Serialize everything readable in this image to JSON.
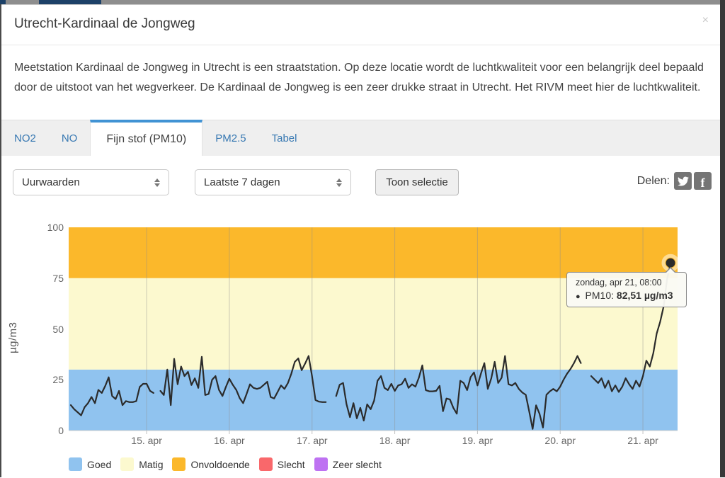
{
  "modal": {
    "title": "Utrecht-Kardinaal de Jongweg",
    "close_glyph": "×",
    "description": "Meetstation Kardinaal de Jongweg in Utrecht is een straatstation. Op deze locatie wordt de luchtkwaliteit voor een belangrijk deel bepaald door de uitstoot van het wegverkeer. De Kardinaal de Jongweg is een zeer drukke straat in Utrecht. Het RIVM meet hier de luchtkwaliteit."
  },
  "tabs": [
    {
      "label": "NO2",
      "active": false
    },
    {
      "label": "NO",
      "active": false
    },
    {
      "label": "Fijn stof (PM10)",
      "active": true
    },
    {
      "label": "PM2.5",
      "active": false
    },
    {
      "label": "Tabel",
      "active": false
    }
  ],
  "controls": {
    "interval_select": {
      "value": "Uurwaarden"
    },
    "range_select": {
      "value": "Laatste 7 dagen"
    },
    "show_button_label": "Toon selectie",
    "share_label": "Delen:",
    "share_icons": [
      "twitter",
      "facebook"
    ]
  },
  "tooltip": {
    "date": "zondag, apr 21, 08:00",
    "bullet": "●",
    "series_label": "PM10:",
    "value": "82,51 µg/m3"
  },
  "chart_data": {
    "type": "line",
    "ylabel": "µg/m3",
    "ylim": [
      0,
      100
    ],
    "yticks": [
      0,
      25,
      50,
      75,
      100
    ],
    "x_unit": "hour",
    "x_start": "apr 14 02:00",
    "x_end": "apr 21 08:00",
    "xtick_labels": [
      "15. apr",
      "16. apr",
      "17. apr",
      "18. apr",
      "19. apr",
      "20. apr",
      "21. apr"
    ],
    "xtick_indices": [
      22,
      46,
      70,
      94,
      118,
      142,
      166
    ],
    "grid": true,
    "legend_position": "bottom",
    "bands": [
      {
        "label": "Goed",
        "from": 0,
        "to": 30,
        "color": "#90C3EF"
      },
      {
        "label": "Matig",
        "from": 30,
        "to": 75,
        "color": "#FCF9CF"
      },
      {
        "label": "Onvoldoende",
        "from": 75,
        "to": 100,
        "color": "#FBB82B"
      },
      {
        "label": "Slecht",
        "color": "#F9686B"
      },
      {
        "label": "Zeer slecht",
        "color": "#BE72F2"
      }
    ],
    "series": [
      {
        "name": "PM10",
        "color": "#2b2b2b",
        "values": [
          12.5,
          10.5,
          9,
          7.5,
          11.5,
          13.5,
          16.5,
          13.5,
          20,
          18.5,
          22,
          26.2,
          17,
          15.5,
          19.5,
          12.5,
          14.5,
          14,
          14,
          14.5,
          21.5,
          23,
          23,
          19.5,
          18.5,
          null,
          19.5,
          17.5,
          30,
          12.5,
          35.3,
          22.8,
          31.5,
          26.8,
          28.9,
          22.4,
          25.7,
          21,
          36.3,
          17.5,
          18,
          25,
          26.8,
          20,
          17,
          21.5,
          25.5,
          22.5,
          20,
          16,
          13.5,
          18,
          22.8,
          21,
          20.5,
          21,
          22.5,
          24,
          16.5,
          15.8,
          19,
          22.2,
          20.5,
          23.4,
          28,
          33.8,
          35.5,
          29.7,
          33,
          36.7,
          26.8,
          15,
          14.2,
          14,
          14,
          null,
          null,
          17,
          22.5,
          23.4,
          13,
          6.6,
          13.5,
          6,
          11.2,
          4.9,
          12.9,
          10.5,
          14.7,
          24.5,
          26.8,
          21,
          19.9,
          23,
          19.5,
          22.2,
          22.8,
          25.5,
          21,
          22.8,
          21.6,
          26,
          32.1,
          19.9,
          19.3,
          19.3,
          19.5,
          22,
          9.5,
          15.8,
          15.3,
          11.2,
          8.3,
          24.5,
          23.4,
          19.9,
          26.3,
          28.6,
          22.2,
          28,
          33.2,
          20.5,
          25.7,
          33.8,
          23.4,
          26,
          36.7,
          22.8,
          22.2,
          23.4,
          20.5,
          18.7,
          17.6,
          9.5,
          0.8,
          12.4,
          8.3,
          1.5,
          17.6,
          19.3,
          20.5,
          19.3,
          21.6,
          25.1,
          28,
          30.3,
          33.2,
          36.7,
          33.2,
          null,
          null,
          26.8,
          25.1,
          23.4,
          25.7,
          21,
          24.5,
          19.3,
          22.2,
          19,
          21.6,
          25.7,
          22.8,
          20.5,
          24.5,
          21.6,
          26.8,
          34.4,
          31.5,
          38,
          47.7,
          53.5,
          61,
          74.3,
          82.51
        ]
      }
    ],
    "highlight_point": {
      "index": 174,
      "value": 82.51,
      "label": "82,51 µg/m3"
    }
  }
}
